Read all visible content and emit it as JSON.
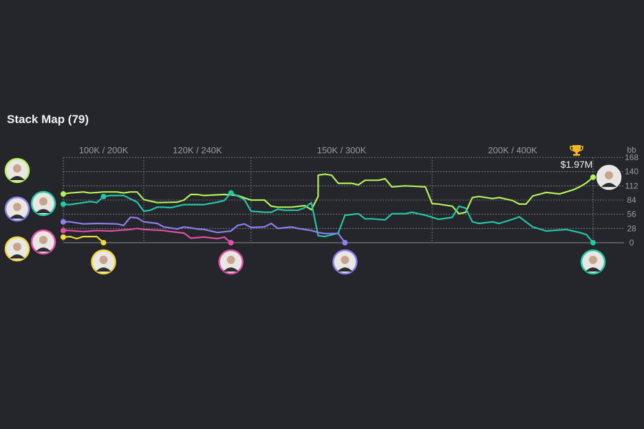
{
  "title": "Stack Map (79)",
  "prize": "$1.97M",
  "colors": {
    "background": "#25262b",
    "grid": "#8a8b90",
    "lime": "#b5f25a",
    "teal": "#22c9a6",
    "purple": "#8f7ff0",
    "pink": "#e64fa8",
    "yellow": "#f2d83a",
    "winner": "#e8e8e8",
    "trophy": "#f4b72a"
  },
  "chart_data": {
    "type": "line",
    "ylabel": "bb",
    "ylim": [
      0,
      168
    ],
    "yticks": [
      0,
      28,
      56,
      84,
      112,
      140,
      168
    ],
    "xlim": [
      0,
      79
    ],
    "grid": true,
    "levels": [
      {
        "label": "100K / 200K",
        "start": 0,
        "end": 12
      },
      {
        "label": "120K / 240K",
        "start": 12,
        "end": 28
      },
      {
        "label": "150K / 300K",
        "start": 28,
        "end": 55
      },
      {
        "label": "200K / 400K",
        "start": 55,
        "end": 79
      }
    ],
    "series": [
      {
        "color": "lime",
        "finish": "winner",
        "points": [
          [
            0,
            96
          ],
          [
            1,
            98
          ],
          [
            3,
            100
          ],
          [
            4,
            98
          ],
          [
            6,
            100
          ],
          [
            8,
            100
          ],
          [
            9,
            98
          ],
          [
            10,
            100
          ],
          [
            11,
            100
          ],
          [
            12,
            85
          ],
          [
            14,
            79
          ],
          [
            17,
            80
          ],
          [
            18,
            84
          ],
          [
            19,
            95
          ],
          [
            20,
            95
          ],
          [
            21,
            93
          ],
          [
            24,
            95
          ],
          [
            26,
            93
          ],
          [
            28,
            84
          ],
          [
            30,
            84
          ],
          [
            31,
            72
          ],
          [
            32,
            70
          ],
          [
            34,
            70
          ],
          [
            36,
            73
          ],
          [
            37,
            65
          ],
          [
            38,
            91
          ],
          [
            38,
            133
          ],
          [
            39,
            135
          ],
          [
            40,
            133
          ],
          [
            41,
            117
          ],
          [
            43,
            117
          ],
          [
            44,
            114
          ],
          [
            45,
            123
          ],
          [
            47,
            123
          ],
          [
            48,
            126
          ],
          [
            49,
            110
          ],
          [
            51,
            112
          ],
          [
            54,
            110
          ],
          [
            55,
            77
          ],
          [
            56,
            76
          ],
          [
            58,
            72
          ],
          [
            59,
            57
          ],
          [
            60,
            60
          ],
          [
            61,
            89
          ],
          [
            62,
            91
          ],
          [
            64,
            87
          ],
          [
            65,
            89
          ],
          [
            67,
            83
          ],
          [
            68,
            76
          ],
          [
            69,
            76
          ],
          [
            70,
            92
          ],
          [
            72,
            99
          ],
          [
            74,
            96
          ],
          [
            76,
            104
          ],
          [
            77,
            110
          ],
          [
            78,
            118
          ],
          [
            79,
            129
          ]
        ]
      },
      {
        "color": "teal",
        "finish": 79,
        "markers": [
          6,
          25
        ],
        "points": [
          [
            0,
            76
          ],
          [
            1,
            75
          ],
          [
            3,
            79
          ],
          [
            4,
            81
          ],
          [
            5,
            79
          ],
          [
            6,
            91
          ],
          [
            7,
            93
          ],
          [
            9,
            93
          ],
          [
            11,
            80
          ],
          [
            12,
            62
          ],
          [
            13,
            64
          ],
          [
            14,
            70
          ],
          [
            15,
            70
          ],
          [
            16,
            69
          ],
          [
            18,
            75
          ],
          [
            19,
            75
          ],
          [
            21,
            75
          ],
          [
            23,
            80
          ],
          [
            24,
            83
          ],
          [
            25,
            98
          ],
          [
            26,
            92
          ],
          [
            27,
            85
          ],
          [
            28,
            62
          ],
          [
            30,
            60
          ],
          [
            31,
            60
          ],
          [
            32,
            66
          ],
          [
            33,
            64
          ],
          [
            35,
            64
          ],
          [
            36,
            69
          ],
          [
            37,
            79
          ],
          [
            38,
            14
          ],
          [
            39,
            12
          ],
          [
            41,
            19
          ],
          [
            42,
            54
          ],
          [
            44,
            57
          ],
          [
            45,
            47
          ],
          [
            46,
            47
          ],
          [
            48,
            45
          ],
          [
            49,
            57
          ],
          [
            51,
            57
          ],
          [
            52,
            60
          ],
          [
            54,
            54
          ],
          [
            55,
            50
          ],
          [
            56,
            46
          ],
          [
            58,
            50
          ],
          [
            59,
            72
          ],
          [
            60,
            68
          ],
          [
            61,
            41
          ],
          [
            62,
            38
          ],
          [
            64,
            41
          ],
          [
            65,
            38
          ],
          [
            67,
            46
          ],
          [
            68,
            51
          ],
          [
            70,
            31
          ],
          [
            72,
            23
          ],
          [
            73,
            24
          ],
          [
            75,
            26
          ],
          [
            77,
            20
          ],
          [
            78,
            16
          ],
          [
            79,
            0
          ]
        ]
      },
      {
        "color": "purple",
        "finish": 42,
        "points": [
          [
            0,
            41
          ],
          [
            1,
            41
          ],
          [
            3,
            37
          ],
          [
            5,
            38
          ],
          [
            8,
            37
          ],
          [
            9,
            34
          ],
          [
            10,
            50
          ],
          [
            11,
            49
          ],
          [
            12,
            41
          ],
          [
            14,
            38
          ],
          [
            15,
            31
          ],
          [
            17,
            27
          ],
          [
            18,
            31
          ],
          [
            20,
            27
          ],
          [
            21,
            26
          ],
          [
            23,
            20
          ],
          [
            25,
            23
          ],
          [
            26,
            34
          ],
          [
            27,
            37
          ],
          [
            28,
            30
          ],
          [
            30,
            31
          ],
          [
            31,
            38
          ],
          [
            32,
            28
          ],
          [
            34,
            31
          ],
          [
            35,
            28
          ],
          [
            37,
            24
          ],
          [
            38,
            20
          ],
          [
            39,
            18
          ],
          [
            41,
            18
          ],
          [
            42,
            0
          ]
        ]
      },
      {
        "color": "pink",
        "finish": 25,
        "points": [
          [
            0,
            24
          ],
          [
            1,
            24
          ],
          [
            3,
            22
          ],
          [
            5,
            24
          ],
          [
            7,
            23
          ],
          [
            10,
            26
          ],
          [
            11,
            28
          ],
          [
            12,
            26
          ],
          [
            15,
            24
          ],
          [
            16,
            22
          ],
          [
            18,
            19
          ],
          [
            19,
            9
          ],
          [
            21,
            11
          ],
          [
            23,
            8
          ],
          [
            24,
            11
          ],
          [
            25,
            0
          ]
        ]
      },
      {
        "color": "yellow",
        "finish": 6,
        "points": [
          [
            0,
            11
          ],
          [
            1,
            12
          ],
          [
            2,
            8
          ],
          [
            3,
            12
          ],
          [
            5,
            12
          ],
          [
            6,
            0
          ]
        ]
      }
    ]
  },
  "icons": {
    "trophy": "trophy-icon",
    "avatar": "player-avatar"
  }
}
